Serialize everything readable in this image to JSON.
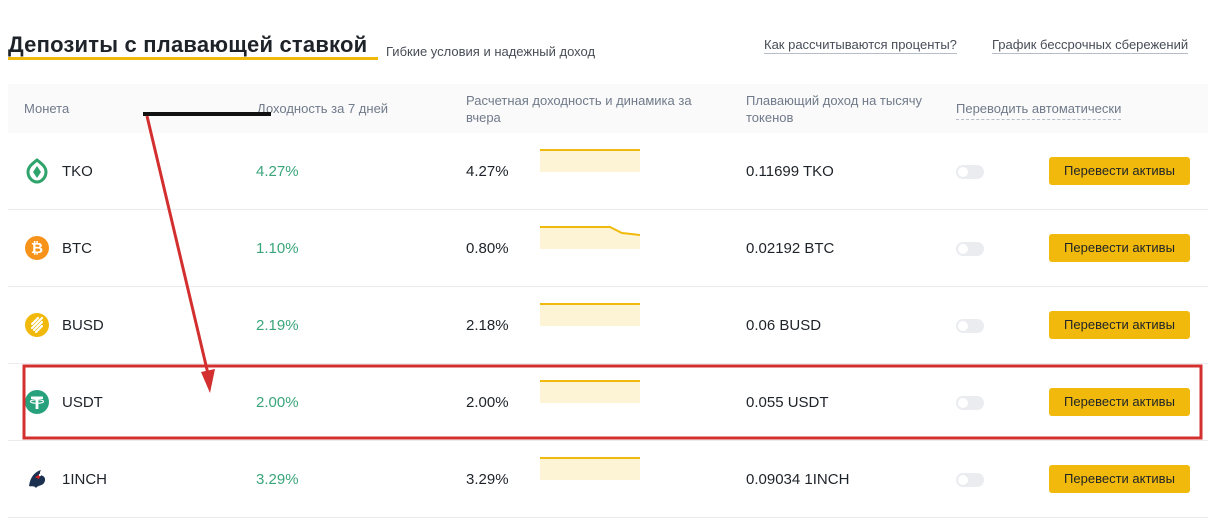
{
  "header": {
    "title": "Депозиты с плавающей ставкой",
    "subtitle": "Гибкие условия и надежный доход",
    "links": [
      "Как рассчитываются проценты?",
      "График бессрочных сбережений"
    ]
  },
  "table": {
    "columns": {
      "coin": "Монета",
      "apy7": "Доходность за 7 дней",
      "apy_yesterday": "Расчетная доходность и динамика за вчера",
      "income": "Плавающий доход на тысячу токенов",
      "auto": "Переводить автоматически"
    },
    "rows": [
      {
        "coin": "TKO",
        "icon": "tko-icon",
        "apy7": "4.27%",
        "apy_yesterday": "4.27%",
        "income": "0.11699 TKO",
        "auto_transfer": false,
        "button": "Перевести активы"
      },
      {
        "coin": "BTC",
        "icon": "btc-icon",
        "apy7": "1.10%",
        "apy_yesterday": "0.80%",
        "income": "0.02192 BTC",
        "auto_transfer": false,
        "button": "Перевести активы"
      },
      {
        "coin": "BUSD",
        "icon": "busd-icon",
        "apy7": "2.19%",
        "apy_yesterday": "2.18%",
        "income": "0.06 BUSD",
        "auto_transfer": false,
        "button": "Перевести активы"
      },
      {
        "coin": "USDT",
        "icon": "usdt-icon",
        "apy7": "2.00%",
        "apy_yesterday": "2.00%",
        "income": "0.055 USDT",
        "auto_transfer": false,
        "button": "Перевести активы"
      },
      {
        "coin": "1INCH",
        "icon": "1inch-icon",
        "apy7": "3.29%",
        "apy_yesterday": "3.29%",
        "income": "0.09034 1INCH",
        "auto_transfer": false,
        "button": "Перевести активы"
      }
    ]
  },
  "colors": {
    "accent": "#f0b90b",
    "positive": "#3aa57a",
    "annotation": "#d32f2f",
    "tko": "#2ea36b",
    "btc": "#f7931a",
    "busd": "#f0b90b",
    "usdt": "#26a17b",
    "1inch": "#1b314f"
  },
  "annotations": {
    "highlighted_row": "USDT",
    "arrow": "red-arrow"
  }
}
